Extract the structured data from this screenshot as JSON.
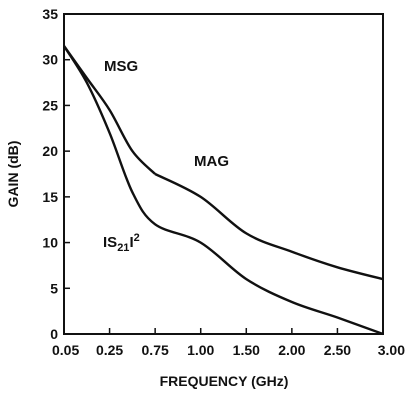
{
  "chart_data": {
    "type": "line",
    "xlabel": "FREQUENCY (GHz)",
    "ylabel": "GAIN (dB)",
    "ylim": [
      0,
      35
    ],
    "x_ticks": [
      "0.05",
      "0.25",
      "0.75",
      "1.00",
      "1.50",
      "2.00",
      "2.50",
      "3.00"
    ],
    "y_ticks": [
      "0",
      "5",
      "10",
      "15",
      "20",
      "25",
      "30",
      "35"
    ],
    "grid": false,
    "x_scale": "nonuniform tick positions (0.05, 0.25, 0.75, 1.00, 1.50, 2.00, 2.50, 3.00 equally spaced)",
    "series": [
      {
        "name": "MSG",
        "x": [
          0.05,
          0.15,
          0.25,
          0.5,
          0.75
        ],
        "y": [
          31.5,
          28.0,
          24.5,
          20.0,
          17.5
        ]
      },
      {
        "name": "MAG",
        "x": [
          0.75,
          1.0,
          1.5,
          2.0,
          2.5,
          3.0
        ],
        "y": [
          17.5,
          15.0,
          11.0,
          9.0,
          7.3,
          6.0
        ]
      },
      {
        "name": "|S21|2",
        "name_parts": {
          "prefix": "IS",
          "sub": "21",
          "suffix": "I",
          "sup": "2"
        },
        "x": [
          0.05,
          0.15,
          0.25,
          0.5,
          0.75,
          1.0,
          1.5,
          2.0,
          2.5,
          3.0
        ],
        "y": [
          31.5,
          27.5,
          22.0,
          15.5,
          12.0,
          10.0,
          6.0,
          3.5,
          1.8,
          0.0
        ]
      }
    ],
    "labels": {
      "msg": "MSG",
      "mag": "MAG"
    }
  }
}
